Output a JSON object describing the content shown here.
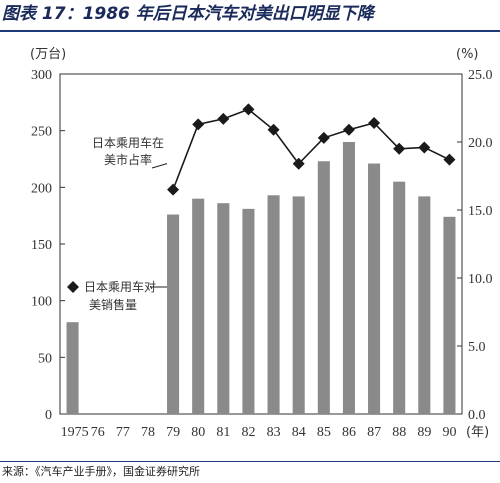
{
  "title": "图表 17：1986 年后日本汽车对美出口明显下降",
  "source": "来源：《汽车产业手册》，国金证券研究所",
  "chart_data": {
    "type": "bar+line",
    "categories": [
      "1975",
      "76",
      "77",
      "78",
      "79",
      "80",
      "81",
      "82",
      "83",
      "84",
      "85",
      "86",
      "87",
      "88",
      "89",
      "90"
    ],
    "x_unit": "(年)",
    "left_unit": "(万台)",
    "right_unit": "(%)",
    "left_ylim": [
      0,
      300
    ],
    "left_ticks": [
      "0",
      "50",
      "100",
      "150",
      "200",
      "250",
      "300"
    ],
    "right_ylim": [
      0,
      25
    ],
    "right_ticks": [
      "0.0",
      "5.0",
      "10.0",
      "15.0",
      "20.0",
      "25.0"
    ],
    "series": [
      {
        "name": "日本乘用车对美销售量",
        "type": "bar",
        "axis": "left",
        "color": "#8a8a8a",
        "values": [
          81,
          null,
          null,
          null,
          176,
          190,
          186,
          181,
          193,
          192,
          223,
          240,
          221,
          205,
          192,
          174
        ]
      },
      {
        "name": "日本乘用车在美市占率",
        "type": "line",
        "axis": "right",
        "color": "#1a1a1a",
        "values": [
          null,
          null,
          null,
          null,
          16.5,
          21.3,
          21.7,
          22.4,
          20.9,
          18.4,
          20.3,
          20.9,
          21.4,
          19.5,
          19.6,
          18.7
        ]
      }
    ],
    "annotations": [
      {
        "lines": [
          "日本乘用车在",
          "美市占率"
        ],
        "series": 1
      },
      {
        "lines": [
          "日本乘用车对",
          "美销售量"
        ],
        "series": 0
      }
    ]
  }
}
